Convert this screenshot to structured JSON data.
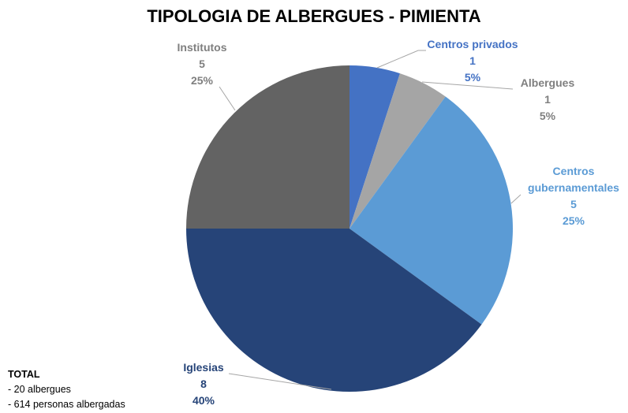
{
  "chart_data": {
    "type": "pie",
    "title": "TIPOLOGIA DE ALBERGUES - PIMIENTA",
    "categories": [
      "Centros privados",
      "Albergues",
      "Centros gubernamentales",
      "Iglesias",
      "Institutos"
    ],
    "values": [
      1,
      1,
      5,
      8,
      5
    ],
    "percent_labels": [
      "5%",
      "5%",
      "25%",
      "40%",
      "25%"
    ],
    "colors": [
      "#4472c4",
      "#a5a5a5",
      "#5b9bd5",
      "#264478",
      "#636363"
    ],
    "label_colors": [
      "#4472c4",
      "#7f7f7f",
      "#5b9bd5",
      "#264478",
      "#7f7f7f"
    ],
    "annotation": [
      "TOTAL",
      "- 20 albergues",
      "- 614 personas albergadas"
    ]
  }
}
